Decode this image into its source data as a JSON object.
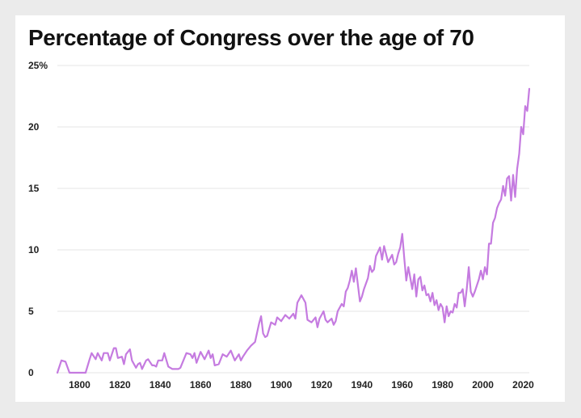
{
  "chart_data": {
    "type": "line",
    "title": "Percentage of Congress over the age of 70",
    "xlabel": "",
    "ylabel": "",
    "xlim": [
      1789,
      2023
    ],
    "ylim": [
      0,
      25
    ],
    "x_ticks": [
      1800,
      1820,
      1840,
      1860,
      1880,
      1900,
      1920,
      1940,
      1960,
      1980,
      2000,
      2020
    ],
    "y_ticks": [
      {
        "value": 0,
        "label": "0"
      },
      {
        "value": 5,
        "label": "5"
      },
      {
        "value": 10,
        "label": "10"
      },
      {
        "value": 15,
        "label": "15"
      },
      {
        "value": 20,
        "label": "20"
      },
      {
        "value": 25,
        "label": "25%"
      }
    ],
    "grid": true,
    "legend": "none",
    "colors": {
      "line": "#c57be0",
      "grid": "#e6e6e6",
      "text": "#111111",
      "background": "#ebebeb"
    },
    "series": [
      {
        "color": "#c57be0",
        "points": [
          [
            1789,
            0
          ],
          [
            1791,
            1
          ],
          [
            1793,
            0.9
          ],
          [
            1795,
            0
          ],
          [
            1797,
            0
          ],
          [
            1799,
            0
          ],
          [
            1801,
            0
          ],
          [
            1803,
            0
          ],
          [
            1805,
            1.1
          ],
          [
            1806,
            1.6
          ],
          [
            1808,
            1.1
          ],
          [
            1809,
            1.6
          ],
          [
            1811,
            1
          ],
          [
            1812,
            1.6
          ],
          [
            1814,
            1.6
          ],
          [
            1815,
            1
          ],
          [
            1817,
            2
          ],
          [
            1818,
            2
          ],
          [
            1819,
            1.2
          ],
          [
            1821,
            1.3
          ],
          [
            1822,
            0.7
          ],
          [
            1823,
            1.5
          ],
          [
            1825,
            1.9
          ],
          [
            1826,
            1
          ],
          [
            1828,
            0.4
          ],
          [
            1829,
            0.7
          ],
          [
            1830,
            0.8
          ],
          [
            1831,
            0.3
          ],
          [
            1833,
            1
          ],
          [
            1834,
            1.1
          ],
          [
            1836,
            0.6
          ],
          [
            1837,
            0.6
          ],
          [
            1838,
            0.5
          ],
          [
            1839,
            1
          ],
          [
            1841,
            1
          ],
          [
            1842,
            1.6
          ],
          [
            1844,
            0.5
          ],
          [
            1846,
            0.3
          ],
          [
            1849,
            0.3
          ],
          [
            1850,
            0.4
          ],
          [
            1853,
            1.6
          ],
          [
            1855,
            1.5
          ],
          [
            1856,
            1.2
          ],
          [
            1857,
            1.6
          ],
          [
            1858,
            0.8
          ],
          [
            1860,
            1.7
          ],
          [
            1862,
            1.1
          ],
          [
            1864,
            1.8
          ],
          [
            1865,
            1.2
          ],
          [
            1866,
            1.5
          ],
          [
            1867,
            0.6
          ],
          [
            1869,
            0.7
          ],
          [
            1871,
            1.5
          ],
          [
            1873,
            1.3
          ],
          [
            1875,
            1.8
          ],
          [
            1877,
            1
          ],
          [
            1879,
            1.5
          ],
          [
            1880,
            1
          ],
          [
            1881,
            1.3
          ],
          [
            1883,
            1.8
          ],
          [
            1885,
            2.2
          ],
          [
            1887,
            2.5
          ],
          [
            1889,
            4
          ],
          [
            1890,
            4.6
          ],
          [
            1891,
            3.2
          ],
          [
            1892,
            2.9
          ],
          [
            1893,
            3
          ],
          [
            1895,
            4.1
          ],
          [
            1897,
            3.9
          ],
          [
            1898,
            4.5
          ],
          [
            1900,
            4.2
          ],
          [
            1902,
            4.7
          ],
          [
            1904,
            4.4
          ],
          [
            1906,
            4.8
          ],
          [
            1907,
            4.4
          ],
          [
            1908,
            5.7
          ],
          [
            1910,
            6.3
          ],
          [
            1912,
            5.7
          ],
          [
            1913,
            4.3
          ],
          [
            1915,
            4.1
          ],
          [
            1917,
            4.5
          ],
          [
            1918,
            3.7
          ],
          [
            1919,
            4.4
          ],
          [
            1921,
            5
          ],
          [
            1922,
            4.3
          ],
          [
            1923,
            4.1
          ],
          [
            1925,
            4.4
          ],
          [
            1926,
            3.9
          ],
          [
            1927,
            4.2
          ],
          [
            1928,
            5
          ],
          [
            1930,
            5.6
          ],
          [
            1931,
            5.4
          ],
          [
            1932,
            6.6
          ],
          [
            1933,
            6.9
          ],
          [
            1934,
            7.5
          ],
          [
            1935,
            8.3
          ],
          [
            1936,
            7.4
          ],
          [
            1937,
            8.5
          ],
          [
            1939,
            5.8
          ],
          [
            1940,
            6.2
          ],
          [
            1941,
            6.8
          ],
          [
            1943,
            7.7
          ],
          [
            1944,
            8.7
          ],
          [
            1945,
            8.2
          ],
          [
            1946,
            8.4
          ],
          [
            1947,
            9.5
          ],
          [
            1949,
            10.2
          ],
          [
            1950,
            9.2
          ],
          [
            1951,
            10.3
          ],
          [
            1953,
            9
          ],
          [
            1955,
            9.6
          ],
          [
            1956,
            8.8
          ],
          [
            1957,
            9
          ],
          [
            1958,
            9.7
          ],
          [
            1959,
            10.2
          ],
          [
            1960,
            11.3
          ],
          [
            1961,
            9.3
          ],
          [
            1962,
            7.5
          ],
          [
            1963,
            8.6
          ],
          [
            1964,
            7.7
          ],
          [
            1965,
            6.8
          ],
          [
            1966,
            8
          ],
          [
            1967,
            6.2
          ],
          [
            1968,
            7.6
          ],
          [
            1969,
            7.8
          ],
          [
            1970,
            6.7
          ],
          [
            1971,
            7.1
          ],
          [
            1972,
            6.3
          ],
          [
            1973,
            6.4
          ],
          [
            1974,
            5.8
          ],
          [
            1975,
            6.5
          ],
          [
            1976,
            5.5
          ],
          [
            1977,
            5.9
          ],
          [
            1978,
            5.1
          ],
          [
            1979,
            5.6
          ],
          [
            1980,
            5.3
          ],
          [
            1981,
            4.1
          ],
          [
            1982,
            5.4
          ],
          [
            1983,
            4.6
          ],
          [
            1984,
            5
          ],
          [
            1985,
            4.9
          ],
          [
            1986,
            5.6
          ],
          [
            1987,
            5.3
          ],
          [
            1988,
            6.5
          ],
          [
            1989,
            6.5
          ],
          [
            1990,
            6.8
          ],
          [
            1991,
            5.4
          ],
          [
            1992,
            6.8
          ],
          [
            1993,
            8.6
          ],
          [
            1994,
            6.6
          ],
          [
            1995,
            6.2
          ],
          [
            1996,
            6.6
          ],
          [
            1997,
            7.1
          ],
          [
            1998,
            7.6
          ],
          [
            1999,
            8.3
          ],
          [
            2000,
            7.6
          ],
          [
            2001,
            8.6
          ],
          [
            2002,
            8
          ],
          [
            2003,
            10.5
          ],
          [
            2004,
            10.5
          ],
          [
            2005,
            12.2
          ],
          [
            2006,
            12.6
          ],
          [
            2007,
            13.4
          ],
          [
            2008,
            13.8
          ],
          [
            2009,
            14.1
          ],
          [
            2010,
            15.2
          ],
          [
            2011,
            14.4
          ],
          [
            2012,
            15.8
          ],
          [
            2013,
            16
          ],
          [
            2014,
            14
          ],
          [
            2015,
            16.1
          ],
          [
            2016,
            14.3
          ],
          [
            2017,
            16.6
          ],
          [
            2018,
            17.8
          ],
          [
            2019,
            20
          ],
          [
            2020,
            19.4
          ],
          [
            2021,
            21.7
          ],
          [
            2022,
            21.3
          ],
          [
            2023,
            23.1
          ]
        ]
      }
    ]
  }
}
